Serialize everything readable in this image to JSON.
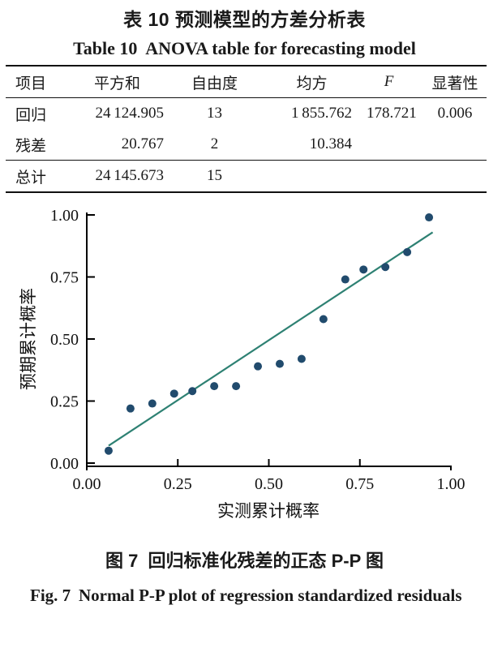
{
  "titles": {
    "zh": "表 10 预测模型的方差分析表",
    "en": "Table 10  ANOVA table for forecasting model"
  },
  "anova": {
    "columns": [
      "项目",
      "平方和",
      "自由度",
      "均方",
      "F",
      "显著性"
    ],
    "rows": [
      {
        "cells": [
          "回归",
          "24 124.905",
          "13",
          "1 855.762",
          "178.721",
          "0.006"
        ]
      },
      {
        "cells": [
          "残差",
          "20.767",
          "2",
          "10.384",
          "",
          ""
        ]
      },
      {
        "cells": [
          "总计",
          "24 145.673",
          "15",
          "",
          "",
          ""
        ]
      }
    ]
  },
  "chart_data": {
    "type": "scatter",
    "title": "",
    "xlabel": "实测累计概率",
    "ylabel": "预期累计概率",
    "xlim": [
      0,
      1
    ],
    "ylim": [
      0,
      1
    ],
    "x_ticks": [
      0,
      0.25,
      0.5,
      0.75,
      1
    ],
    "x_tick_labels": [
      "0.00",
      "0.25",
      "0.50",
      "0.75",
      "1.00"
    ],
    "y_ticks": [
      0,
      0.25,
      0.5,
      0.75,
      1
    ],
    "y_tick_labels": [
      "0.00",
      "0.25",
      "0.50",
      "0.75",
      "1.00"
    ],
    "points": [
      [
        0.06,
        0.05
      ],
      [
        0.12,
        0.22
      ],
      [
        0.18,
        0.24
      ],
      [
        0.24,
        0.28
      ],
      [
        0.29,
        0.29
      ],
      [
        0.35,
        0.31
      ],
      [
        0.41,
        0.31
      ],
      [
        0.47,
        0.39
      ],
      [
        0.53,
        0.4
      ],
      [
        0.59,
        0.42
      ],
      [
        0.65,
        0.58
      ],
      [
        0.71,
        0.74
      ],
      [
        0.76,
        0.78
      ],
      [
        0.82,
        0.79
      ],
      [
        0.88,
        0.85
      ],
      [
        0.94,
        0.99
      ]
    ],
    "ref_line": {
      "x1": 0.06,
      "y1": 0.07,
      "x2": 0.95,
      "y2": 0.93
    },
    "point_color": "#214b6d",
    "line_color": "#2e8173",
    "axis_color": "#000000",
    "grid": false,
    "legend": "none"
  },
  "captions": {
    "fig_zh": "图 7  回归标准化残差的正态 P-P 图",
    "fig_en_prefix": "Fig. 7",
    "fig_en_text": "Normal P-P plot of regression standardized residuals"
  }
}
